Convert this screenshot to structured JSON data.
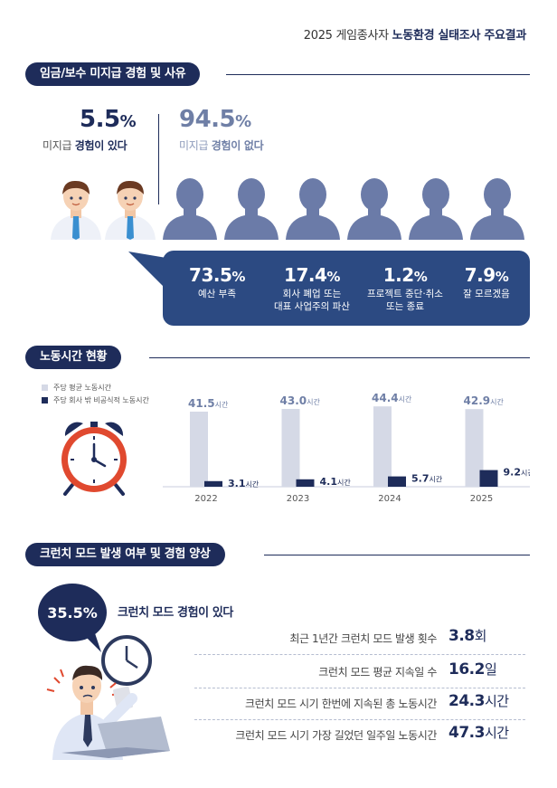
{
  "header": {
    "prefix": "2025 게임종사자 ",
    "title": "노동환경 실태조사 주요결과"
  },
  "section1": {
    "title": "임금/보수 미지급 경험 및 사유",
    "yes": {
      "value": "5.5",
      "unit": "%",
      "caption_a": "미지급 ",
      "caption_b": "경험이 있다"
    },
    "no": {
      "value": "94.5",
      "unit": "%",
      "caption_a": "미지급 ",
      "caption_b": "경험이 없다"
    },
    "reasons": [
      {
        "value": "73.5",
        "unit": "%",
        "label_1": "예산 부족",
        "label_2": ""
      },
      {
        "value": "17.4",
        "unit": "%",
        "label_1": "회사 폐업 또는",
        "label_2": "대표 사업주의 파산"
      },
      {
        "value": "1.2",
        "unit": "%",
        "label_1": "프로젝트 중단·취소",
        "label_2": "또는 종료"
      },
      {
        "value": "7.9",
        "unit": "%",
        "label_1": "잘 모르겠음",
        "label_2": ""
      }
    ],
    "icons": {
      "person": "worker-person-icon",
      "silhouette": "person-silhouette-icon"
    }
  },
  "section2": {
    "title": "노동시간 현황",
    "legend": [
      "주당 평균 노동시간",
      "주당 회사 밖 비공식적 노동시간"
    ],
    "icon": "alarm-clock-icon"
  },
  "chart_data": {
    "type": "bar",
    "categories": [
      "2022",
      "2023",
      "2024",
      "2025"
    ],
    "series": [
      {
        "name": "주당 평균 노동시간",
        "values": [
          41.5,
          43.0,
          44.4,
          42.9
        ],
        "color": "#d5d9e6"
      },
      {
        "name": "주당 회사 밖 비공식적 노동시간",
        "values": [
          3.1,
          4.1,
          5.7,
          9.2
        ],
        "color": "#1e2c5a"
      }
    ],
    "value_labels": [
      [
        "41.5",
        "43.0",
        "44.4",
        "42.9"
      ],
      [
        "3.1",
        "4.1",
        "5.7",
        "9.2"
      ]
    ],
    "unit": "시간",
    "grid": false,
    "legend_position": "top-left"
  },
  "section3": {
    "title": "크런치 모드 발생 여부 및 경험 양상",
    "bubble": "35.5%",
    "caption": "크런치 모드 경험이 있다",
    "rows": [
      {
        "label": "최근 1년간 크런치 모드 발생 횟수",
        "value": "3.8",
        "unit": "회"
      },
      {
        "label": "크런치 모드 평균 지속일 수",
        "value": "16.2",
        "unit": "일"
      },
      {
        "label": "크런치 모드 시기 한번에 지속된 총 노동시간",
        "value": "24.3",
        "unit": "시간"
      },
      {
        "label": "크런치 모드 시기 가장 길었던 일주일 노동시간",
        "value": "47.3",
        "unit": "시간"
      }
    ],
    "icons": {
      "clock": "wall-clock-icon",
      "worker": "stressed-worker-icon",
      "laptop": "laptop-icon"
    }
  },
  "colors": {
    "navy": "#1e2c5a",
    "box_blue": "#2c4a82",
    "silhouette": "#6b7ba8",
    "light_bar": "#d5d9e6"
  }
}
